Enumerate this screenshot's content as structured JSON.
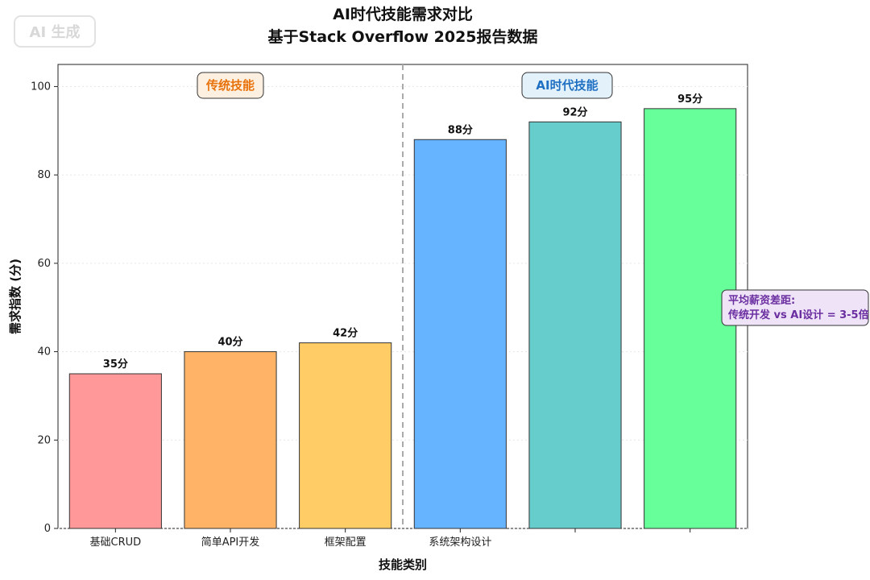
{
  "watermark": "AI 生成",
  "chart_data": {
    "type": "bar",
    "title": "AI时代技能需求对比",
    "subtitle": "基于Stack Overflow 2025报告数据",
    "xlabel": "技能类别",
    "ylabel": "需求指数 (分)",
    "ylim": [
      0,
      105
    ],
    "yticks": [
      0,
      20,
      40,
      60,
      80,
      100
    ],
    "grid": true,
    "categories": [
      "基础CRUD",
      "简单API开发",
      "框架配置",
      "系统架构设计",
      "",
      ""
    ],
    "values": [
      35,
      40,
      42,
      88,
      92,
      95
    ],
    "value_labels": [
      "35分",
      "40分",
      "42分",
      "88分",
      "92分",
      "95分"
    ],
    "colors": [
      "#ff9999",
      "#ffb366",
      "#ffcc66",
      "#66b3ff",
      "#66cccc",
      "#66ff99"
    ],
    "divider_after_index": 2,
    "sections": [
      {
        "label": "传统技能",
        "color": "#e8720c",
        "bg": "#fdf0e0"
      },
      {
        "label": "AI时代技能",
        "color": "#1f6fc2",
        "bg": "#e3f1fb"
      }
    ],
    "annotation": {
      "lines": [
        "平均薪资差距:",
        "传统开发 vs AI设计 = 3-5倍"
      ],
      "color": "#6a2ea0",
      "bg": "#efe3f8"
    }
  }
}
